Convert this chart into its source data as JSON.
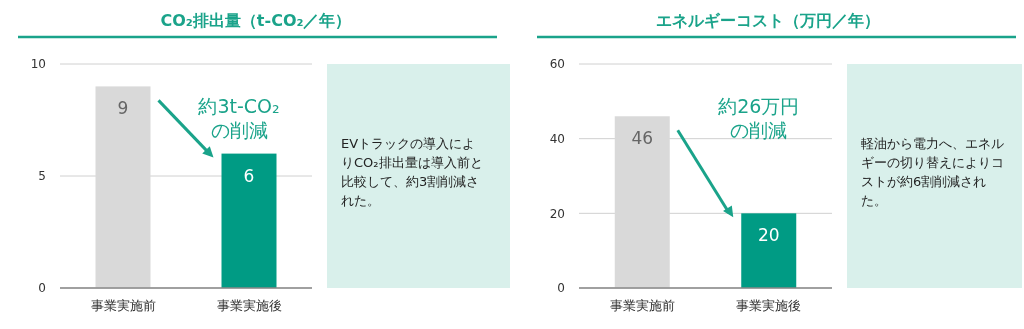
{
  "chart_data": [
    {
      "type": "bar",
      "title": "CO₂排出量（t-CO₂／年）",
      "categories": [
        "事業実施前",
        "事業実施後"
      ],
      "values": [
        9,
        6
      ],
      "colors": [
        "#d9d9d9",
        "#009b84"
      ],
      "ylim": [
        0,
        10
      ],
      "yticks": [
        0,
        5,
        10
      ],
      "grid": "y",
      "data_labels": true,
      "annotations": [
        "約3t-CO₂の削減",
        "EVトラックの導入によりCO₂排出量は導入前と比較して、約3割削減された。"
      ]
    },
    {
      "type": "bar",
      "title": "エネルギーコスト（万円／年）",
      "categories": [
        "事業実施前",
        "事業実施後"
      ],
      "values": [
        46,
        20
      ],
      "colors": [
        "#d9d9d9",
        "#009b84"
      ],
      "ylim": [
        0,
        60
      ],
      "yticks": [
        0,
        20,
        40,
        60
      ],
      "grid": "y",
      "data_labels": true,
      "annotations": [
        "約26万円の削減",
        "軽油から電力へ、エネルギーの切り替えによりコストが約6割削減された。"
      ]
    }
  ]
}
